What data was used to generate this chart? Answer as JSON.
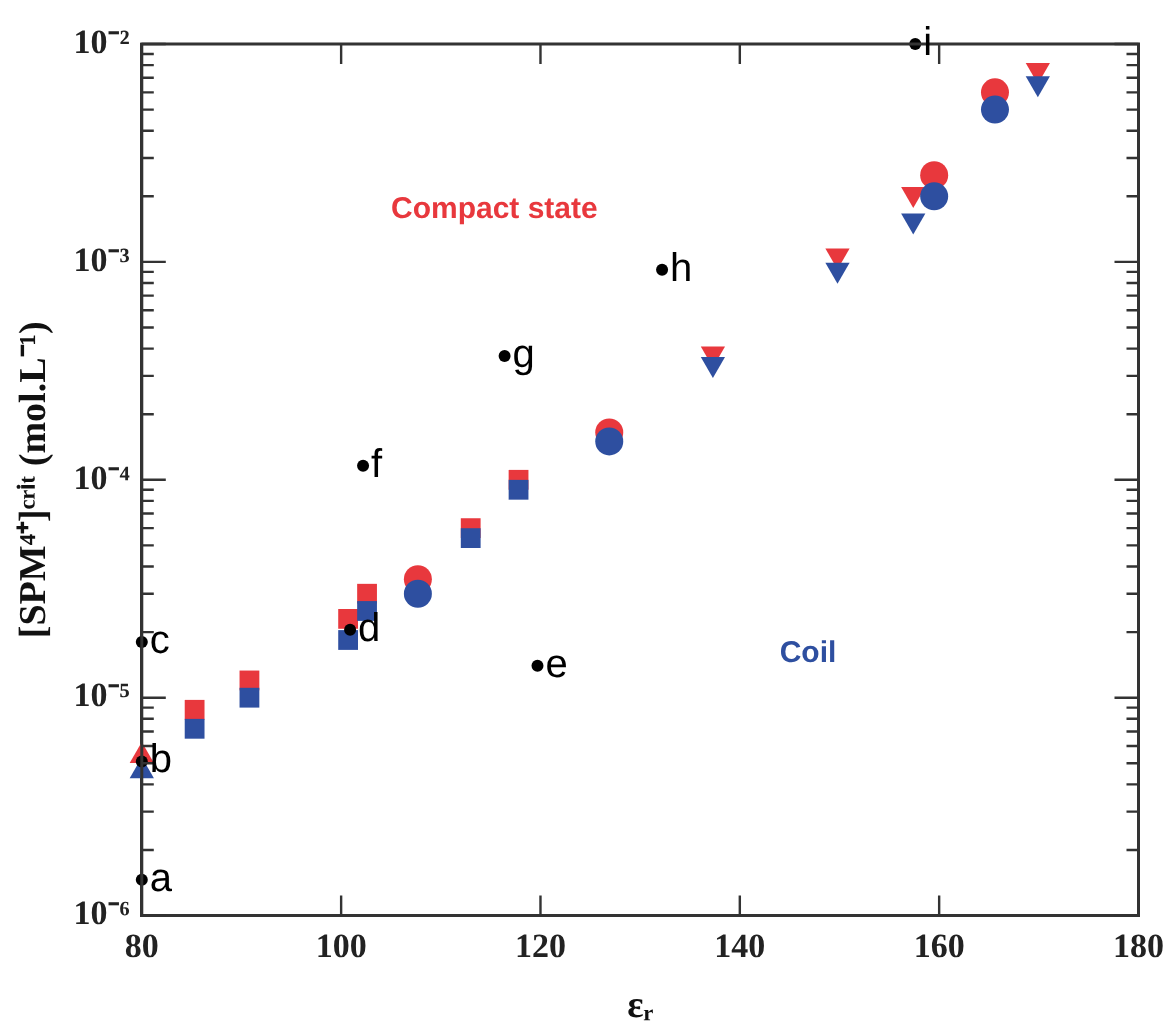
{
  "chart_data": {
    "type": "scatter",
    "xlabel": "εᵣ",
    "ylabel": "[SPM⁴⁺]ᶜʳⁱᵗ (mol.L⁻¹)",
    "log": "y",
    "grid": false,
    "legend": false,
    "xlim": [
      80,
      180
    ],
    "xticks": [
      80,
      100,
      120,
      140,
      160,
      180
    ],
    "ylim": [
      1e-06,
      0.01
    ],
    "yticks": [
      {
        "value": 1e-06,
        "label": "10⁻⁶"
      },
      {
        "value": 2e-06,
        "label": null
      },
      {
        "value": 3e-06,
        "label": null
      },
      {
        "value": 4e-06,
        "label": null
      },
      {
        "value": 5e-06,
        "label": null
      },
      {
        "value": 6e-06,
        "label": null
      },
      {
        "value": 7e-06,
        "label": null
      },
      {
        "value": 8e-06,
        "label": null
      },
      {
        "value": 9e-06,
        "label": null
      },
      {
        "value": 1e-05,
        "label": "10⁻⁵"
      },
      {
        "value": 2e-05,
        "label": null
      },
      {
        "value": 3e-05,
        "label": null
      },
      {
        "value": 4e-05,
        "label": null
      },
      {
        "value": 5e-05,
        "label": null
      },
      {
        "value": 6e-05,
        "label": null
      },
      {
        "value": 7e-05,
        "label": null
      },
      {
        "value": 8e-05,
        "label": null
      },
      {
        "value": 9e-05,
        "label": null
      },
      {
        "value": 0.0001,
        "label": "10⁻⁴"
      },
      {
        "value": 0.0002,
        "label": null
      },
      {
        "value": 0.0003,
        "label": null
      },
      {
        "value": 0.0004,
        "label": null
      },
      {
        "value": 0.0005,
        "label": null
      },
      {
        "value": 0.0006,
        "label": null
      },
      {
        "value": 0.0007,
        "label": null
      },
      {
        "value": 0.0008,
        "label": null
      },
      {
        "value": 0.0009,
        "label": null
      },
      {
        "value": 0.001,
        "label": "10⁻³"
      },
      {
        "value": 0.002,
        "label": null
      },
      {
        "value": 0.003,
        "label": null
      },
      {
        "value": 0.004,
        "label": null
      },
      {
        "value": 0.005,
        "label": null
      },
      {
        "value": 0.006,
        "label": null
      },
      {
        "value": 0.007,
        "label": null
      },
      {
        "value": 0.008,
        "label": null
      },
      {
        "value": 0.009,
        "label": null
      },
      {
        "value": 0.01,
        "label": "10⁻²"
      }
    ],
    "series": [
      {
        "color": "#e8383d",
        "marker": "square",
        "x": [
          85.3,
          90.8,
          100.7,
          102.6,
          113,
          117.8
        ],
        "values": [
          8.8e-06,
          1.2e-05,
          2.3e-05,
          3e-05,
          6e-05,
          0.0001
        ]
      },
      {
        "color": "#e8383d",
        "marker": "circle",
        "x": [
          107.7,
          126.9,
          159.5,
          165.6
        ],
        "values": [
          3.5e-05,
          0.000165,
          0.0025,
          0.006
        ]
      },
      {
        "color": "#e8383d",
        "marker": "triangle-down",
        "x": [
          137.3,
          149.8,
          157.4,
          169.9
        ],
        "values": [
          0.00038,
          0.00107,
          0.00205,
          0.0076
        ]
      },
      {
        "color": "#e8383d",
        "marker": "triangle",
        "x": [
          80
        ],
        "values": [
          5.4e-06
        ]
      },
      {
        "color": "#2e4fa0",
        "marker": "square",
        "x": [
          85.3,
          90.8,
          100.7,
          102.6,
          113,
          117.8
        ],
        "values": [
          7.2e-06,
          1e-05,
          1.84e-05,
          2.5e-05,
          5.4e-05,
          9e-05
        ]
      },
      {
        "color": "#2e4fa0",
        "marker": "circle",
        "x": [
          107.7,
          126.9,
          159.5,
          165.6
        ],
        "values": [
          3e-05,
          0.00015,
          0.002,
          0.005
        ]
      },
      {
        "color": "#2e4fa0",
        "marker": "triangle-down",
        "x": [
          137.3,
          149.8,
          157.4,
          169.9
        ],
        "values": [
          0.00034,
          0.00092,
          0.00155,
          0.0066
        ]
      },
      {
        "color": "#2e4fa0",
        "marker": "triangle",
        "x": [
          80
        ],
        "values": [
          4.6e-06
        ]
      },
      {
        "color": "#000000",
        "marker": "circle",
        "x": [
          80,
          80,
          80,
          100.9,
          119.7,
          102.2,
          116.4,
          132.2,
          157.6
        ],
        "values": [
          1.46e-06,
          5.1e-06,
          1.8e-05,
          2.05e-05,
          1.4e-05,
          0.000116,
          0.00037,
          0.00092,
          0.01
        ]
      }
    ],
    "annotations": [
      "Compact state",
      "Coil",
      {
        "text": "a",
        "x": 80,
        "y": 1.46e-06
      },
      {
        "text": "b",
        "x": 80,
        "y": 5.1e-06
      },
      {
        "text": "c",
        "x": 80,
        "y": 1.8e-05
      },
      {
        "text": "d",
        "x": 100.9,
        "y": 2.05e-05
      },
      {
        "text": "e",
        "x": 119.7,
        "y": 1.4e-05
      },
      {
        "text": "f",
        "x": 102.2,
        "y": 0.000116
      },
      {
        "text": "g",
        "x": 116.4,
        "y": 0.00037
      },
      {
        "text": "h",
        "x": 132.2,
        "y": 0.00092
      },
      {
        "text": "i",
        "x": 157.6,
        "y": 0.01
      }
    ]
  }
}
